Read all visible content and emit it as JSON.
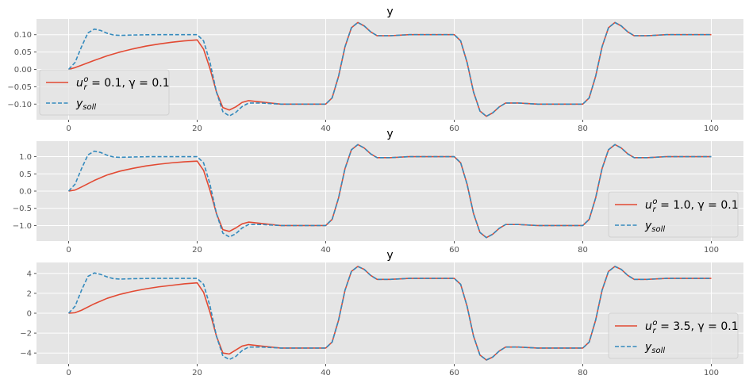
{
  "chart_data": [
    {
      "type": "line",
      "title": "y",
      "xlabel": "",
      "ylabel": "",
      "xlim": [
        -5,
        105
      ],
      "ylim": [
        -0.145,
        0.145
      ],
      "xticks": [
        0,
        20,
        40,
        60,
        80,
        100
      ],
      "xtick_labels": [
        "0",
        "20",
        "40",
        "60",
        "80",
        "100"
      ],
      "yticks": [
        -0.1,
        -0.05,
        0.0,
        0.05,
        0.1
      ],
      "ytick_labels": [
        "−0.10",
        "−0.05",
        "0.00",
        "0.05",
        "0.10"
      ],
      "grid": true,
      "legend_position": "lower-left",
      "setpoint": [
        0.1,
        -0.1,
        0.1,
        -0.1,
        0.1
      ],
      "series": [
        {
          "name": "u_r^o = 0.1, γ = 0.1",
          "color": "#E24A33",
          "style": "solid",
          "x": [
            0,
            1,
            2,
            4,
            6,
            8,
            10,
            12,
            14,
            16,
            18,
            20,
            21,
            22,
            23,
            24,
            25,
            26,
            27,
            28,
            30,
            33,
            36,
            40,
            41,
            42,
            43,
            44,
            45,
            46,
            47,
            48,
            50,
            53,
            56,
            60,
            61,
            62,
            63,
            64,
            65,
            66,
            67,
            68,
            70,
            73,
            76,
            80,
            81,
            82,
            83,
            84,
            85,
            86,
            87,
            88,
            90,
            93,
            96,
            100
          ],
          "y": [
            0,
            0.005,
            0.012,
            0.026,
            0.039,
            0.05,
            0.059,
            0.067,
            0.073,
            0.078,
            0.082,
            0.085,
            0.058,
            0.002,
            -0.065,
            -0.11,
            -0.117,
            -0.108,
            -0.095,
            -0.09,
            -0.094,
            -0.1,
            -0.1,
            -0.1,
            -0.082,
            -0.02,
            0.065,
            0.12,
            0.135,
            0.125,
            0.108,
            0.097,
            0.097,
            0.1,
            0.1,
            0.1,
            0.082,
            0.02,
            -0.065,
            -0.12,
            -0.135,
            -0.125,
            -0.108,
            -0.097,
            -0.097,
            -0.1,
            -0.1,
            -0.1,
            -0.082,
            -0.02,
            0.065,
            0.12,
            0.135,
            0.125,
            0.108,
            0.097,
            0.097,
            0.1,
            0.1,
            0.1
          ]
        },
        {
          "name": "y_soll",
          "color": "#348ABD",
          "style": "dashed",
          "x": [
            0,
            1,
            2,
            3,
            4,
            5,
            6,
            7,
            8,
            10,
            13,
            16,
            20,
            21,
            22,
            23,
            24,
            25,
            26,
            27,
            28,
            30,
            33,
            36,
            40,
            41,
            42,
            43,
            44,
            45,
            46,
            47,
            48,
            50,
            53,
            56,
            60,
            61,
            62,
            63,
            64,
            65,
            66,
            67,
            68,
            70,
            73,
            76,
            80,
            81,
            82,
            83,
            84,
            85,
            86,
            87,
            88,
            90,
            93,
            96,
            100
          ],
          "y": [
            0,
            0.02,
            0.065,
            0.105,
            0.116,
            0.112,
            0.104,
            0.099,
            0.098,
            0.099,
            0.1,
            0.1,
            0.1,
            0.082,
            0.02,
            -0.065,
            -0.122,
            -0.134,
            -0.124,
            -0.107,
            -0.097,
            -0.097,
            -0.1,
            -0.1,
            -0.1,
            -0.082,
            -0.02,
            0.065,
            0.12,
            0.135,
            0.125,
            0.108,
            0.097,
            0.097,
            0.1,
            0.1,
            0.1,
            0.082,
            0.02,
            -0.065,
            -0.12,
            -0.135,
            -0.125,
            -0.108,
            -0.097,
            -0.097,
            -0.1,
            -0.1,
            -0.1,
            -0.082,
            -0.02,
            0.065,
            0.12,
            0.135,
            0.125,
            0.108,
            0.097,
            0.097,
            0.1,
            0.1,
            0.1
          ]
        }
      ]
    },
    {
      "type": "line",
      "title": "y",
      "xlabel": "",
      "ylabel": "",
      "xlim": [
        -5,
        105
      ],
      "ylim": [
        -1.45,
        1.45
      ],
      "xticks": [
        0,
        20,
        40,
        60,
        80,
        100
      ],
      "xtick_labels": [
        "0",
        "20",
        "40",
        "60",
        "80",
        "100"
      ],
      "yticks": [
        -1.0,
        -0.5,
        0.0,
        0.5,
        1.0
      ],
      "ytick_labels": [
        "−1.0",
        "−0.5",
        "0.0",
        "0.5",
        "1.0"
      ],
      "grid": true,
      "legend_position": "lower-right",
      "series": [
        {
          "name": "u_r^o = 1.0, γ = 0.1",
          "color": "#E24A33",
          "style": "solid",
          "x": [
            0,
            1,
            2,
            4,
            6,
            8,
            10,
            12,
            14,
            16,
            18,
            20,
            21,
            22,
            23,
            24,
            25,
            26,
            27,
            28,
            30,
            33,
            36,
            40,
            41,
            42,
            43,
            44,
            45,
            46,
            47,
            48,
            50,
            53,
            56,
            60,
            61,
            62,
            63,
            64,
            65,
            66,
            67,
            68,
            70,
            73,
            76,
            80,
            81,
            82,
            83,
            84,
            85,
            86,
            87,
            88,
            90,
            93,
            96,
            100
          ],
          "y": [
            0,
            0.03,
            0.12,
            0.31,
            0.47,
            0.58,
            0.66,
            0.73,
            0.78,
            0.82,
            0.85,
            0.87,
            0.6,
            0.02,
            -0.65,
            -1.12,
            -1.17,
            -1.07,
            -0.95,
            -0.9,
            -0.94,
            -1.0,
            -1.0,
            -1.0,
            -0.82,
            -0.2,
            0.65,
            1.2,
            1.35,
            1.25,
            1.08,
            0.97,
            0.97,
            1.0,
            1.0,
            1.0,
            0.82,
            0.2,
            -0.65,
            -1.2,
            -1.35,
            -1.25,
            -1.08,
            -0.97,
            -0.97,
            -1.0,
            -1.0,
            -1.0,
            -0.82,
            -0.2,
            0.65,
            1.2,
            1.35,
            1.25,
            1.08,
            0.97,
            0.97,
            1.0,
            1.0,
            1.0
          ]
        },
        {
          "name": "y_soll",
          "color": "#348ABD",
          "style": "dashed",
          "x": [
            0,
            1,
            2,
            3,
            4,
            5,
            6,
            7,
            8,
            10,
            13,
            16,
            20,
            21,
            22,
            23,
            24,
            25,
            26,
            27,
            28,
            30,
            33,
            36,
            40,
            41,
            42,
            43,
            44,
            45,
            46,
            47,
            48,
            50,
            53,
            56,
            60,
            61,
            62,
            63,
            64,
            65,
            66,
            67,
            68,
            70,
            73,
            76,
            80,
            81,
            82,
            83,
            84,
            85,
            86,
            87,
            88,
            90,
            93,
            96,
            100
          ],
          "y": [
            0,
            0.2,
            0.65,
            1.05,
            1.16,
            1.12,
            1.04,
            0.99,
            0.98,
            0.99,
            1.0,
            1.0,
            1.0,
            0.82,
            0.2,
            -0.65,
            -1.22,
            -1.33,
            -1.24,
            -1.07,
            -0.97,
            -0.97,
            -1.0,
            -1.0,
            -1.0,
            -0.82,
            -0.2,
            0.65,
            1.2,
            1.35,
            1.25,
            1.08,
            0.97,
            0.97,
            1.0,
            1.0,
            1.0,
            0.82,
            0.2,
            -0.65,
            -1.2,
            -1.35,
            -1.25,
            -1.08,
            -0.97,
            -0.97,
            -1.0,
            -1.0,
            -1.0,
            -0.82,
            -0.2,
            0.65,
            1.2,
            1.35,
            1.25,
            1.08,
            0.97,
            0.97,
            1.0,
            1.0,
            1.0
          ]
        }
      ]
    },
    {
      "type": "line",
      "title": "y",
      "xlabel": "",
      "ylabel": "",
      "xlim": [
        -5,
        105
      ],
      "ylim": [
        -5.1,
        5.1
      ],
      "xticks": [
        0,
        20,
        40,
        60,
        80,
        100
      ],
      "xtick_labels": [
        "0",
        "20",
        "40",
        "60",
        "80",
        "100"
      ],
      "yticks": [
        -4,
        -2,
        0,
        2,
        4
      ],
      "ytick_labels": [
        "−4",
        "−2",
        "0",
        "2",
        "4"
      ],
      "grid": true,
      "legend_position": "lower-right",
      "series": [
        {
          "name": "u_r^o = 3.5, γ = 0.1",
          "color": "#E24A33",
          "style": "solid",
          "x": [
            0,
            1,
            2,
            4,
            6,
            8,
            10,
            12,
            14,
            16,
            18,
            20,
            21,
            22,
            23,
            24,
            25,
            26,
            27,
            28,
            30,
            33,
            36,
            40,
            41,
            42,
            43,
            44,
            45,
            46,
            47,
            48,
            50,
            53,
            56,
            60,
            61,
            62,
            63,
            64,
            65,
            66,
            67,
            68,
            70,
            73,
            76,
            80,
            81,
            82,
            83,
            84,
            85,
            86,
            87,
            88,
            90,
            93,
            96,
            100
          ],
          "y": [
            0,
            0.05,
            0.3,
            0.95,
            1.5,
            1.9,
            2.2,
            2.45,
            2.65,
            2.8,
            2.95,
            3.05,
            2.1,
            0.07,
            -2.3,
            -4.0,
            -4.1,
            -3.7,
            -3.3,
            -3.15,
            -3.3,
            -3.5,
            -3.5,
            -3.5,
            -2.9,
            -0.7,
            2.3,
            4.2,
            4.7,
            4.4,
            3.8,
            3.4,
            3.4,
            3.5,
            3.5,
            3.5,
            2.9,
            0.7,
            -2.3,
            -4.2,
            -4.7,
            -4.4,
            -3.8,
            -3.4,
            -3.4,
            -3.5,
            -3.5,
            -3.5,
            -2.9,
            -0.7,
            2.3,
            4.2,
            4.7,
            4.4,
            3.8,
            3.4,
            3.4,
            3.5,
            3.5,
            3.5
          ]
        },
        {
          "name": "y_soll",
          "color": "#348ABD",
          "style": "dashed",
          "x": [
            0,
            1,
            2,
            3,
            4,
            5,
            6,
            7,
            8,
            10,
            13,
            16,
            20,
            21,
            22,
            23,
            24,
            25,
            26,
            27,
            28,
            30,
            33,
            36,
            40,
            41,
            42,
            43,
            44,
            45,
            46,
            47,
            48,
            50,
            53,
            56,
            60,
            61,
            62,
            63,
            64,
            65,
            66,
            67,
            68,
            70,
            73,
            76,
            80,
            81,
            82,
            83,
            84,
            85,
            86,
            87,
            88,
            90,
            93,
            96,
            100
          ],
          "y": [
            0,
            0.7,
            2.3,
            3.7,
            4.05,
            3.9,
            3.65,
            3.47,
            3.43,
            3.47,
            3.5,
            3.5,
            3.5,
            2.9,
            0.7,
            -2.3,
            -4.3,
            -4.65,
            -4.35,
            -3.75,
            -3.4,
            -3.4,
            -3.5,
            -3.5,
            -3.5,
            -2.9,
            -0.7,
            2.3,
            4.2,
            4.7,
            4.4,
            3.8,
            3.4,
            3.4,
            3.5,
            3.5,
            3.5,
            2.9,
            0.7,
            -2.3,
            -4.2,
            -4.7,
            -4.4,
            -3.8,
            -3.4,
            -3.4,
            -3.5,
            -3.5,
            -3.5,
            -2.9,
            -0.7,
            2.3,
            4.2,
            4.7,
            4.4,
            3.8,
            3.4,
            3.4,
            3.5,
            3.5,
            3.5
          ]
        }
      ]
    }
  ]
}
